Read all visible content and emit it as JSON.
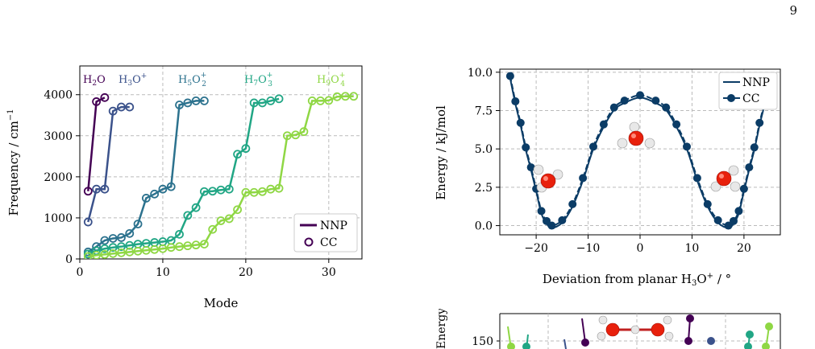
{
  "page": {
    "number": "9"
  },
  "chart_data": [
    {
      "type": "line",
      "title": "",
      "xlabel": "Mode",
      "ylabel": "Frequency / cm⁻¹",
      "xlim": [
        0,
        34
      ],
      "ylim": [
        0,
        4700
      ],
      "xticks": [
        0,
        10,
        20,
        30
      ],
      "yticks": [
        0,
        1000,
        2000,
        3000,
        4000
      ],
      "grid": true,
      "legend": {
        "placement": "bottom-right",
        "entries": [
          {
            "label": "NNP",
            "style": "line"
          },
          {
            "label": "CC",
            "style": "open-circle"
          }
        ]
      },
      "annotations": [
        "H₂O",
        "H₃O⁺",
        "H₅O₂⁺",
        "H₇O₃⁺",
        "H₉O₄⁺"
      ],
      "series": [
        {
          "name": "H₂O",
          "color": "#440154",
          "x": [
            1,
            2,
            3
          ],
          "y": [
            1650,
            3830,
            3930
          ]
        },
        {
          "name": "H₃O⁺",
          "color": "#3b528b",
          "x": [
            1,
            2,
            3,
            4,
            5,
            6
          ],
          "y": [
            900,
            1700,
            1700,
            3600,
            3700,
            3700
          ]
        },
        {
          "name": "H₅O₂⁺",
          "color": "#2c728e",
          "x": [
            1,
            2,
            3,
            4,
            5,
            6,
            7,
            8,
            9,
            10,
            11,
            12,
            13,
            14,
            15
          ],
          "y": [
            170,
            300,
            450,
            500,
            520,
            620,
            850,
            1480,
            1580,
            1700,
            1760,
            3750,
            3800,
            3850,
            3850
          ]
        },
        {
          "name": "H₇O₃⁺",
          "color": "#21a685",
          "x": [
            1,
            2,
            3,
            4,
            5,
            6,
            7,
            8,
            9,
            10,
            11,
            12,
            13,
            14,
            15,
            16,
            17,
            18,
            19,
            20,
            21,
            22,
            23,
            24
          ],
          "y": [
            120,
            200,
            250,
            280,
            300,
            330,
            360,
            380,
            400,
            420,
            450,
            600,
            1060,
            1250,
            1640,
            1650,
            1680,
            1700,
            2550,
            2690,
            3800,
            3800,
            3850,
            3900
          ]
        },
        {
          "name": "H₉O₄⁺",
          "color": "#8fd744",
          "x": [
            1,
            2,
            3,
            4,
            5,
            6,
            7,
            8,
            9,
            10,
            11,
            12,
            13,
            14,
            15,
            16,
            17,
            18,
            19,
            20,
            21,
            22,
            23,
            24,
            25,
            26,
            27,
            28,
            29,
            30,
            31,
            32,
            33
          ],
          "y": [
            60,
            90,
            110,
            130,
            150,
            170,
            190,
            210,
            230,
            250,
            280,
            300,
            320,
            340,
            360,
            720,
            930,
            980,
            1200,
            1620,
            1620,
            1640,
            1700,
            1720,
            3000,
            3020,
            3100,
            3850,
            3850,
            3860,
            3950,
            3960,
            3960
          ]
        }
      ]
    },
    {
      "type": "line",
      "title": "",
      "xlabel": "Deviation from planar H₃O⁺ / °",
      "ylabel": "Energy / kJ/mol",
      "xlim": [
        -27,
        27
      ],
      "ylim": [
        -0.6,
        10.2
      ],
      "xticks": [
        -20,
        -10,
        0,
        10,
        20
      ],
      "yticks": [
        0.0,
        2.5,
        5.0,
        7.5,
        10.0
      ],
      "grid": true,
      "legend": {
        "placement": "top-right",
        "entries": [
          {
            "label": "NNP",
            "style": "line"
          },
          {
            "label": "CC",
            "style": "filled-circle"
          }
        ]
      },
      "series": [
        {
          "name": "CC",
          "color": "#0b3c66",
          "x": [
            -25,
            -24,
            -23,
            -22,
            -21,
            -20,
            -19,
            -18,
            -17,
            -15,
            -13,
            -11,
            -9,
            -7,
            -5,
            -3,
            0,
            3,
            5,
            7,
            9,
            11,
            13,
            15,
            17,
            18,
            19,
            20,
            21,
            22,
            23,
            24,
            25
          ],
          "y": [
            9.75,
            8.1,
            6.7,
            5.1,
            3.8,
            2.4,
            0.95,
            0.3,
            0.0,
            0.35,
            1.4,
            3.1,
            5.15,
            6.6,
            7.7,
            8.15,
            8.5,
            8.15,
            7.7,
            6.6,
            5.15,
            3.1,
            1.4,
            0.35,
            0.0,
            0.3,
            0.95,
            2.4,
            3.8,
            5.1,
            6.7,
            8.1,
            9.75
          ]
        }
      ]
    },
    {
      "type": "scatter",
      "title": "",
      "xlabel": "",
      "ylabel": "Energy / kJ/mol",
      "yticks": [
        150
      ],
      "grid": true,
      "note": "bottom panel is cut off at the image edge"
    }
  ]
}
